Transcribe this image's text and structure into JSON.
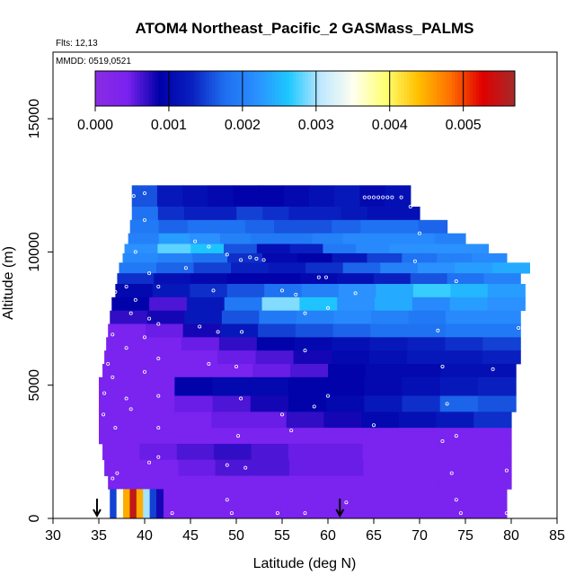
{
  "chart_data": {
    "type": "heatmap",
    "title": "ATOM4 Northeast_Pacific_2 GASMass_PALMS",
    "annotations": [
      "Flts: 12,13",
      "MMDD: 0519,0521"
    ],
    "xlabel": "Latitude (deg N)",
    "ylabel": "Altitude (m)",
    "xlim": [
      30,
      85
    ],
    "ylim": [
      0,
      17500
    ],
    "xticks": [
      "30",
      "35",
      "40",
      "45",
      "50",
      "55",
      "60",
      "65",
      "70",
      "75",
      "80",
      "85"
    ],
    "yticks": [
      "0",
      "5000",
      "10000",
      "15000"
    ],
    "colorbar": {
      "placement": "top-inside",
      "range": [
        0,
        0.0057
      ],
      "ticks": [
        "0.000",
        "0.001",
        "0.002",
        "0.003",
        "0.004",
        "0.005"
      ],
      "colors": [
        "#8a2be2",
        "#7a22f0",
        "#0000a8",
        "#0a20c0",
        "#1e6ef0",
        "#2a90ff",
        "#1ec8ff",
        "#bfe8ff",
        "#fffff0",
        "#ffff70",
        "#ffc000",
        "#ff7000",
        "#e00000",
        "#a52a2a"
      ]
    },
    "bands": [
      {
        "alt_lo": 11700,
        "alt_hi": 12500,
        "lat_start": 38.6,
        "lat_end": 69.0,
        "vals": [
          0.0016,
          0.0012,
          0.0011,
          0.001,
          0.0009,
          0.0009,
          0.001,
          0.0011,
          0.0012,
          0.001,
          0.0011
        ]
      },
      {
        "alt_lo": 11200,
        "alt_hi": 11700,
        "lat_start": 38.6,
        "lat_end": 70.0,
        "vals": [
          0.0018,
          0.0014,
          0.0013,
          0.0013,
          0.0015,
          0.0014,
          0.0013,
          0.0013,
          0.0012,
          0.0011,
          0.0011
        ]
      },
      {
        "alt_lo": 10700,
        "alt_hi": 11200,
        "lat_start": 38.4,
        "lat_end": 73.0,
        "vals": [
          0.0019,
          0.0017,
          0.0018,
          0.0018,
          0.0017,
          0.0016,
          0.0016,
          0.0017,
          0.0018,
          0.0018,
          0.0017
        ]
      },
      {
        "alt_lo": 10300,
        "alt_hi": 10700,
        "lat_start": 38.2,
        "lat_end": 75.0,
        "vals": [
          0.002,
          0.0023,
          0.0022,
          0.002,
          0.0019,
          0.0019,
          0.002,
          0.0021,
          0.0021,
          0.0021,
          0.002
        ]
      },
      {
        "alt_lo": 9950,
        "alt_hi": 10300,
        "lat_start": 37.8,
        "lat_end": 77.5,
        "vals": [
          0.0022,
          0.0028,
          0.0026,
          0.0016,
          0.0011,
          0.0013,
          0.0019,
          0.0021,
          0.0022,
          0.0022,
          0.0022
        ]
      },
      {
        "alt_lo": 9600,
        "alt_hi": 9950,
        "lat_start": 37.6,
        "lat_end": 79.5,
        "vals": [
          0.0021,
          0.002,
          0.0018,
          0.0014,
          0.001,
          0.0009,
          0.0012,
          0.0015,
          0.0018,
          0.002,
          0.0021
        ]
      },
      {
        "alt_lo": 9200,
        "alt_hi": 9600,
        "lat_start": 37.2,
        "lat_end": 82.0,
        "vals": [
          0.0019,
          0.0017,
          0.0015,
          0.0013,
          0.0012,
          0.0014,
          0.0017,
          0.002,
          0.0022,
          0.0023,
          0.0024
        ]
      },
      {
        "alt_lo": 8800,
        "alt_hi": 9200,
        "lat_start": 37.0,
        "lat_end": 81.0,
        "vals": [
          0.0014,
          0.0011,
          0.001,
          0.0009,
          0.0009,
          0.001,
          0.0011,
          0.0013,
          0.0016,
          0.0018,
          0.002
        ]
      },
      {
        "alt_lo": 8300,
        "alt_hi": 8800,
        "lat_start": 36.8,
        "lat_end": 81.5,
        "vals": [
          0.001,
          0.0012,
          0.0014,
          0.0016,
          0.0018,
          0.002,
          0.0022,
          0.0024,
          0.0027,
          0.0025,
          0.0023
        ]
      },
      {
        "alt_lo": 7800,
        "alt_hi": 8300,
        "lat_start": 36.4,
        "lat_end": 81.5,
        "vals": [
          0.0009,
          0.0006,
          0.0012,
          0.0019,
          0.0029,
          0.0026,
          0.0022,
          0.0024,
          0.0021,
          0.0023,
          0.0022
        ]
      },
      {
        "alt_lo": 7300,
        "alt_hi": 7800,
        "lat_start": 36.2,
        "lat_end": 81.0,
        "vals": [
          0.0007,
          0.0008,
          0.0012,
          0.0016,
          0.0019,
          0.002,
          0.0021,
          0.002,
          0.0019,
          0.0021,
          0.0021
        ]
      },
      {
        "alt_lo": 6800,
        "alt_hi": 7300,
        "lat_start": 36.0,
        "lat_end": 81.0,
        "vals": [
          0.0004,
          0.0005,
          0.0008,
          0.0012,
          0.0015,
          0.0016,
          0.0017,
          0.0018,
          0.0018,
          0.0019,
          0.0019
        ]
      },
      {
        "alt_lo": 6300,
        "alt_hi": 6800,
        "lat_start": 35.8,
        "lat_end": 81.0,
        "vals": [
          0.0004,
          0.0004,
          0.0005,
          0.0007,
          0.0009,
          0.001,
          0.0011,
          0.0012,
          0.0013,
          0.0014,
          0.0015
        ]
      },
      {
        "alt_lo": 5800,
        "alt_hi": 6300,
        "lat_start": 35.6,
        "lat_end": 81.0,
        "vals": [
          0.0004,
          0.0004,
          0.0004,
          0.0005,
          0.0006,
          0.0008,
          0.001,
          0.0011,
          0.0012,
          0.0012,
          0.0013
        ]
      },
      {
        "alt_lo": 5300,
        "alt_hi": 5800,
        "lat_start": 35.4,
        "lat_end": 80.5,
        "vals": [
          0.0004,
          0.0004,
          0.0004,
          0.0004,
          0.0005,
          0.0006,
          0.0009,
          0.001,
          0.001,
          0.0011,
          0.0011
        ]
      },
      {
        "alt_lo": 4600,
        "alt_hi": 5300,
        "lat_start": 35.0,
        "lat_end": 80.5,
        "vals": [
          0.0004,
          0.0004,
          0.0009,
          0.001,
          0.001,
          0.0009,
          0.0009,
          0.001,
          0.0011,
          0.0012,
          0.0013
        ]
      },
      {
        "alt_lo": 4000,
        "alt_hi": 4600,
        "lat_start": 35.0,
        "lat_end": 80.5,
        "vals": [
          0.0004,
          0.0004,
          0.0005,
          0.0006,
          0.0008,
          0.0009,
          0.001,
          0.0012,
          0.0014,
          0.0017,
          0.0016
        ]
      },
      {
        "alt_lo": 3400,
        "alt_hi": 4000,
        "lat_start": 35.0,
        "lat_end": 80.0,
        "vals": [
          0.0004,
          0.0004,
          0.0004,
          0.0005,
          0.0005,
          0.0007,
          0.0008,
          0.001,
          0.0011,
          0.0012,
          0.0014
        ]
      },
      {
        "alt_lo": 2800,
        "alt_hi": 3400,
        "lat_start": 35.0,
        "lat_end": 80.0,
        "vals": [
          0.0004,
          0.0004,
          0.0004,
          0.0004,
          0.0004,
          0.0004,
          0.0004,
          0.0004,
          0.0004,
          0.0004,
          0.0004
        ]
      },
      {
        "alt_lo": 2200,
        "alt_hi": 2800,
        "lat_start": 35.4,
        "lat_end": 80.0,
        "vals": [
          0.0004,
          0.0005,
          0.0006,
          0.0007,
          0.0006,
          0.0005,
          0.0005,
          0.0004,
          0.0004,
          0.0004,
          0.0004
        ]
      },
      {
        "alt_lo": 1600,
        "alt_hi": 2200,
        "lat_start": 35.6,
        "lat_end": 80.0,
        "vals": [
          0.0004,
          0.0004,
          0.0005,
          0.0006,
          0.0006,
          0.0005,
          0.0005,
          0.0004,
          0.0004,
          0.0004,
          0.0004
        ]
      },
      {
        "alt_lo": 1100,
        "alt_hi": 1600,
        "lat_start": 36.0,
        "lat_end": 80.0,
        "vals": [
          0.0004,
          0.0004,
          0.0004,
          0.0004,
          0.0004,
          0.0004,
          0.0004,
          0.0004,
          0.0004,
          0.0004,
          0.0004
        ]
      },
      {
        "alt_lo": 0,
        "alt_hi": 1100,
        "lat_start": 42.0,
        "lat_end": 79.5,
        "vals": [
          0.0004,
          0.0004,
          0.0004,
          0.0004,
          0.0004,
          0.0004,
          0.0004,
          0.0004,
          0.0004,
          0.0004,
          0.0004
        ]
      }
    ],
    "columns": [
      {
        "lat_start": 36.2,
        "lat_end": 42.0,
        "alt_lo": 0,
        "alt_hi": 1100,
        "vals": [
          0.0015,
          0.0035,
          0.0045,
          0.0055,
          0.0045,
          0.003,
          0.0015,
          0.0008
        ]
      }
    ],
    "sample_points": [
      {
        "lat": 40.0,
        "alt": 12200
      },
      {
        "lat": 38.8,
        "alt": 12100
      },
      {
        "lat": 64.0,
        "alt": 12050
      },
      {
        "lat": 64.5,
        "alt": 12050
      },
      {
        "lat": 65.0,
        "alt": 12050
      },
      {
        "lat": 65.5,
        "alt": 12050
      },
      {
        "lat": 66.0,
        "alt": 12050
      },
      {
        "lat": 66.5,
        "alt": 12050
      },
      {
        "lat": 67.0,
        "alt": 12050
      },
      {
        "lat": 68.0,
        "alt": 12050
      },
      {
        "lat": 69.0,
        "alt": 11700
      },
      {
        "lat": 40.0,
        "alt": 11200
      },
      {
        "lat": 70.0,
        "alt": 10700
      },
      {
        "lat": 45.5,
        "alt": 10400
      },
      {
        "lat": 47.0,
        "alt": 10200
      },
      {
        "lat": 39.0,
        "alt": 10000
      },
      {
        "lat": 51.5,
        "alt": 9800
      },
      {
        "lat": 52.2,
        "alt": 9750
      },
      {
        "lat": 53.0,
        "alt": 9700
      },
      {
        "lat": 49.0,
        "alt": 9900
      },
      {
        "lat": 50.5,
        "alt": 9700
      },
      {
        "lat": 69.5,
        "alt": 9650
      },
      {
        "lat": 44.5,
        "alt": 9400
      },
      {
        "lat": 40.5,
        "alt": 9200
      },
      {
        "lat": 59.0,
        "alt": 9050
      },
      {
        "lat": 59.8,
        "alt": 9050
      },
      {
        "lat": 74.0,
        "alt": 8900
      },
      {
        "lat": 41.5,
        "alt": 8700
      },
      {
        "lat": 47.5,
        "alt": 8550
      },
      {
        "lat": 55.0,
        "alt": 8550
      },
      {
        "lat": 38.0,
        "alt": 8700
      },
      {
        "lat": 36.8,
        "alt": 8500
      },
      {
        "lat": 56.5,
        "alt": 8400
      },
      {
        "lat": 63.0,
        "alt": 8450
      },
      {
        "lat": 39.0,
        "alt": 8200
      },
      {
        "lat": 38.5,
        "alt": 7700
      },
      {
        "lat": 60.0,
        "alt": 7900
      },
      {
        "lat": 57.5,
        "alt": 7700
      },
      {
        "lat": 40.5,
        "alt": 7500
      },
      {
        "lat": 41.5,
        "alt": 7300
      },
      {
        "lat": 46.0,
        "alt": 7200
      },
      {
        "lat": 36.5,
        "alt": 6900
      },
      {
        "lat": 40.0,
        "alt": 6800
      },
      {
        "lat": 48.0,
        "alt": 7000
      },
      {
        "lat": 50.6,
        "alt": 7000
      },
      {
        "lat": 72.0,
        "alt": 7050
      },
      {
        "lat": 80.8,
        "alt": 7150
      },
      {
        "lat": 38.0,
        "alt": 6400
      },
      {
        "lat": 57.5,
        "alt": 6300
      },
      {
        "lat": 41.5,
        "alt": 6000
      },
      {
        "lat": 36.0,
        "alt": 5800
      },
      {
        "lat": 47.0,
        "alt": 5800
      },
      {
        "lat": 50.0,
        "alt": 5700
      },
      {
        "lat": 40.0,
        "alt": 5500
      },
      {
        "lat": 36.5,
        "alt": 5300
      },
      {
        "lat": 72.5,
        "alt": 5700
      },
      {
        "lat": 78.0,
        "alt": 5600
      },
      {
        "lat": 35.6,
        "alt": 4700
      },
      {
        "lat": 41.5,
        "alt": 4600
      },
      {
        "lat": 38.0,
        "alt": 4500
      },
      {
        "lat": 50.5,
        "alt": 4500
      },
      {
        "lat": 60.0,
        "alt": 4600
      },
      {
        "lat": 73.0,
        "alt": 4300
      },
      {
        "lat": 38.5,
        "alt": 4100
      },
      {
        "lat": 58.5,
        "alt": 4200
      },
      {
        "lat": 55.0,
        "alt": 3900
      },
      {
        "lat": 35.5,
        "alt": 3900
      },
      {
        "lat": 36.8,
        "alt": 3400
      },
      {
        "lat": 41.5,
        "alt": 3400
      },
      {
        "lat": 65.0,
        "alt": 3500
      },
      {
        "lat": 56.0,
        "alt": 3300
      },
      {
        "lat": 50.2,
        "alt": 3100
      },
      {
        "lat": 74.0,
        "alt": 3100
      },
      {
        "lat": 72.5,
        "alt": 2900
      },
      {
        "lat": 41.5,
        "alt": 2300
      },
      {
        "lat": 40.5,
        "alt": 2100
      },
      {
        "lat": 49.0,
        "alt": 2000
      },
      {
        "lat": 51.0,
        "alt": 1900
      },
      {
        "lat": 79.5,
        "alt": 1800
      },
      {
        "lat": 37.0,
        "alt": 1700
      },
      {
        "lat": 73.5,
        "alt": 1700
      },
      {
        "lat": 36.5,
        "alt": 1500
      },
      {
        "lat": 35.5,
        "alt": 900
      },
      {
        "lat": 49.0,
        "alt": 700
      },
      {
        "lat": 62.0,
        "alt": 600
      },
      {
        "lat": 74.0,
        "alt": 700
      },
      {
        "lat": 43.0,
        "alt": 200
      },
      {
        "lat": 49.5,
        "alt": 200
      },
      {
        "lat": 54.5,
        "alt": 200
      },
      {
        "lat": 57.5,
        "alt": 200
      },
      {
        "lat": 74.5,
        "alt": 200
      },
      {
        "lat": 79.5,
        "alt": 200
      }
    ],
    "arrows": [
      {
        "lat": 34.8
      },
      {
        "lat": 61.3
      }
    ],
    "grid": false,
    "legend": "colorbar top inside plot"
  }
}
